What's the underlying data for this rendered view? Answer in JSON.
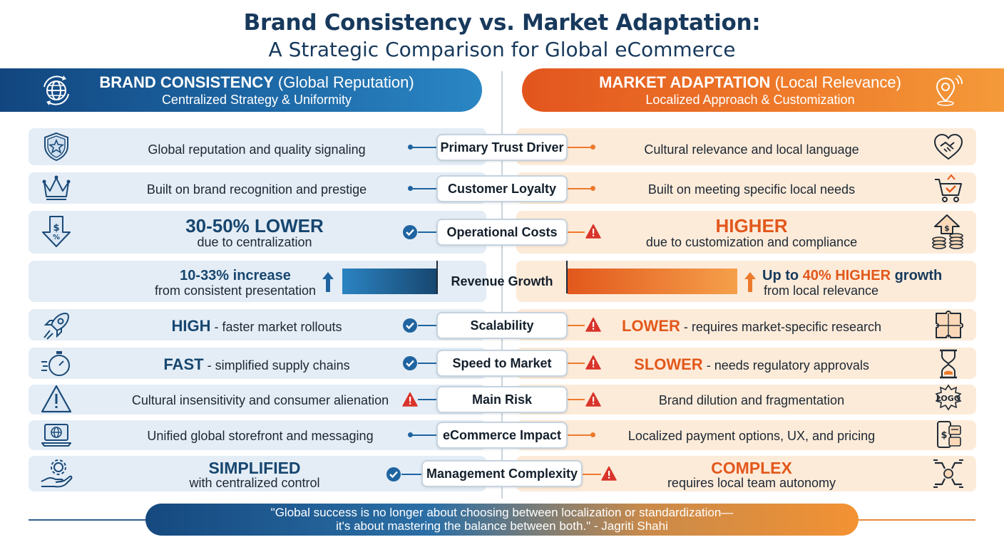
{
  "title": {
    "line1": "Brand Consistency vs. Market Adaptation:",
    "line2": "A Strategic Comparison for Global eCommerce"
  },
  "left_header": {
    "title_bold": "BRAND CONSISTENCY",
    "title_rest": "(Global Reputation)",
    "subtitle": "Centralized Strategy & Uniformity",
    "icon": "globe-icon"
  },
  "right_header": {
    "title_bold": "MARKET ADAPTATION",
    "title_rest": "(Local Relevance)",
    "subtitle": "Localized Approach & Customization",
    "icon": "location-pin-icon"
  },
  "rows": {
    "trust": {
      "label": "Primary Trust Driver",
      "left": "Global reputation and quality signaling",
      "right": "Cultural relevance and local language",
      "left_icon": "shield-star-icon",
      "right_icon": "handshake-heart-icon"
    },
    "loyalty": {
      "label": "Customer Loyalty",
      "left": "Built on brand recognition and prestige",
      "right": "Built on meeting specific local needs",
      "left_icon": "crown-icon",
      "right_icon": "shopping-cart-icon"
    },
    "costs": {
      "label": "Operational Costs",
      "left_big": "30-50% LOWER",
      "left_small": "due to centralization",
      "right_big": "HIGHER",
      "right_small": "due to customization and compliance",
      "left_icon": "down-arrow-dollar-icon",
      "right_icon": "up-arrow-coins-icon"
    },
    "revenue": {
      "label": "Revenue Growth",
      "left_big": "10-33%",
      "left_mid": "increase",
      "left_small": "from consistent presentation",
      "right_pre": "Up to",
      "right_big": "40% HIGHER",
      "right_mid": "growth",
      "right_small": "from local relevance",
      "left_level": 0.33,
      "right_level": 0.4
    },
    "scalability": {
      "label": "Scalability",
      "left_big": "HIGH",
      "left_rest": "- faster market rollouts",
      "right_big": "LOWER",
      "right_rest": "- requires market-specific research",
      "left_icon": "rocket-icon",
      "right_icon": "puzzle-icon"
    },
    "speed": {
      "label": "Speed to Market",
      "left_big": "FAST",
      "left_rest": "- simplified supply chains",
      "right_big": "SLOWER",
      "right_rest": "- needs regulatory approvals",
      "left_icon": "stopwatch-icon",
      "right_icon": "hourglass-icon"
    },
    "risk": {
      "label": "Main Risk",
      "left": "Cultural insensitivity and consumer alienation",
      "right": "Brand dilution and fragmentation",
      "left_icon": "warning-triangle-icon",
      "right_icon": "logo-fragment-icon",
      "right_logo": "LOGO"
    },
    "ecommerce": {
      "label": "eCommerce Impact",
      "left": "Unified global storefront and messaging",
      "right": "Localized payment options, UX, and pricing",
      "left_icon": "laptop-globe-icon",
      "right_icon": "mobile-payment-icon"
    },
    "complexity": {
      "label": "Management Complexity",
      "left_big": "SIMPLIFIED",
      "left_small": "with centralized control",
      "right_big": "COMPLEX",
      "right_small": "requires local team autonomy",
      "left_icon": "hand-gear-icon",
      "right_icon": "team-hands-icon"
    }
  },
  "quote": {
    "line1": "\"Global success is no longer about choosing between localization or standardization—",
    "line2": "it's about mastering the balance between both.\" - Jagriti Shahi"
  },
  "colors": {
    "blue": "#17466f",
    "orange": "#e2581c",
    "check": "#1f64a0",
    "warning": "#d9342b"
  }
}
